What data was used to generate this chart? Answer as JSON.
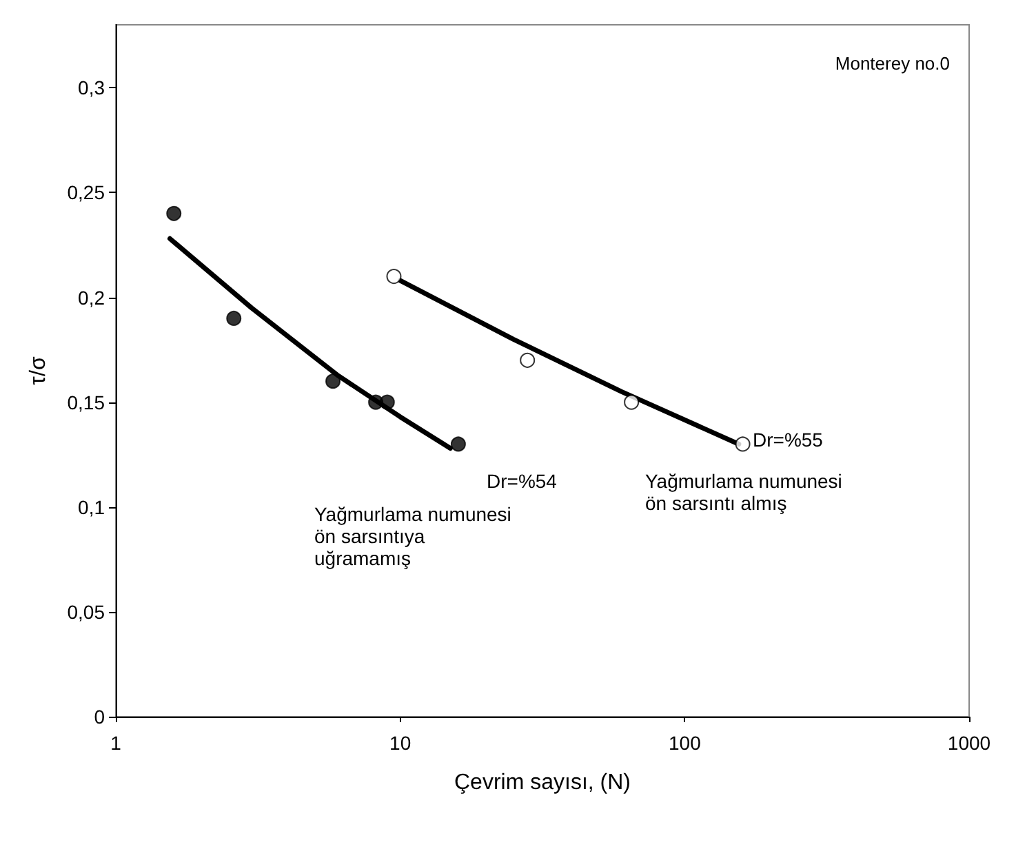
{
  "chart_data": {
    "type": "scatter",
    "xlabel": "Çevrim sayısı, (N)",
    "ylabel": "τ/σ",
    "log": "x",
    "xlim": [
      1,
      1000
    ],
    "xticks": [
      1,
      10,
      100,
      1000
    ],
    "ylim": [
      0,
      0.33
    ],
    "yticks": [
      0,
      {
        "value": 0.05,
        "label": "0,05"
      },
      {
        "value": 0.1,
        "label": "0,1"
      },
      {
        "value": 0.15,
        "label": "0,15"
      },
      {
        "value": 0.2,
        "label": "0,2"
      },
      {
        "value": 0.25,
        "label": "0,25"
      },
      {
        "value": 0.3,
        "label": "0,3"
      }
    ],
    "grid": false,
    "marker": "circle",
    "series": [
      {
        "color": "#000000",
        "x": [
          1.6,
          2.6,
          5.8,
          8.2,
          9.0,
          16
        ],
        "values": [
          0.24,
          0.19,
          0.16,
          0.15,
          0.15,
          0.13
        ]
      },
      {
        "color": "#ffffff",
        "x": [
          9.5,
          28,
          65,
          160
        ],
        "values": [
          0.21,
          0.17,
          0.15,
          0.13
        ]
      },
      {
        "type": "line",
        "marker": "none",
        "color": "#000000",
        "x": [
          1.55,
          3,
          6,
          10,
          15
        ],
        "values": [
          0.228,
          0.195,
          0.163,
          0.143,
          0.128
        ]
      },
      {
        "type": "line",
        "marker": "none",
        "color": "#000000",
        "x": [
          10,
          25,
          60,
          155
        ],
        "values": [
          0.208,
          0.18,
          0.155,
          0.13
        ]
      }
    ],
    "annotations": [
      "Monterey no.0",
      "Dr=%54",
      "Yağmurlama numunesi\nön sarsıntıya\nuğramamış",
      "Dr=%55",
      "Yağmurlama numunesi\nön sarsıntı almış"
    ]
  }
}
